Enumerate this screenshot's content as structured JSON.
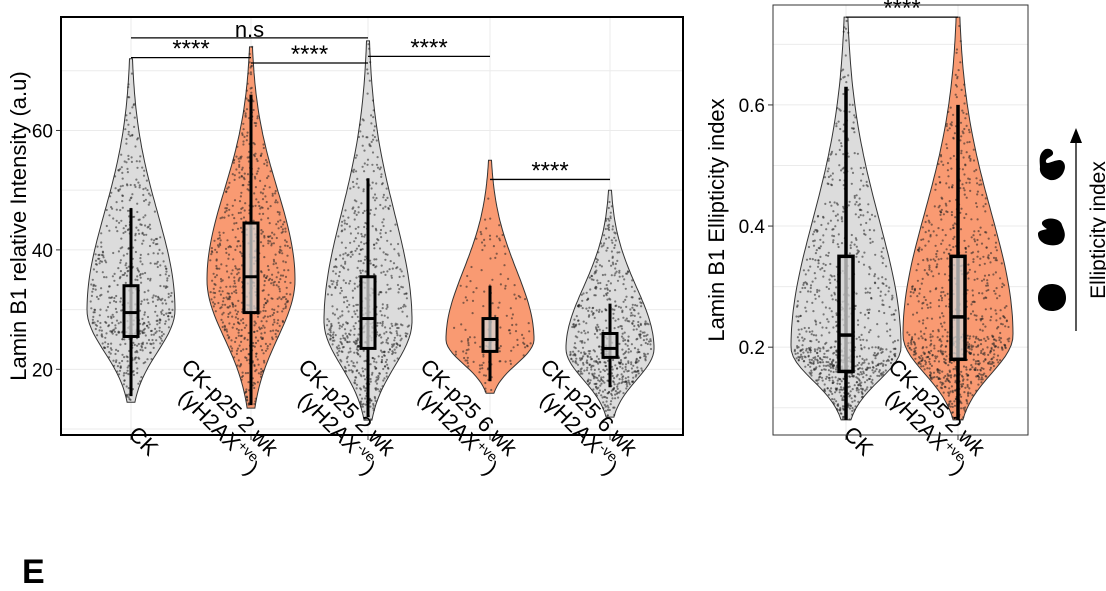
{
  "figure": {
    "panel_letter": "E",
    "colors": {
      "grey": "#dcdcdc",
      "orange": "#f99a72",
      "box_fill": "#d6d6d6",
      "point": "#222222",
      "line": "#000000"
    }
  },
  "chart_data": [
    {
      "type": "violin",
      "title": "",
      "xlabel": "",
      "ylabel": "Lamin B1 relative Intensity (a.u)",
      "ylim": [
        9,
        79
      ],
      "yticks": [
        20,
        40,
        60
      ],
      "grid": true,
      "categories": [
        {
          "label": [
            "CK"
          ],
          "fill": "grey",
          "min": 14.5,
          "max": 72,
          "q1": 25.5,
          "median": 29.5,
          "q3": 34,
          "wlow": 15.5,
          "whigh": 47,
          "center": 30,
          "n": 600
        },
        {
          "label": [
            "CK-p25 2 wk",
            "(γH2AX",
            "+ve",
            ")"
          ],
          "fill": "orange",
          "min": 13.5,
          "max": 74,
          "q1": 29.5,
          "median": 35.5,
          "q3": 44.5,
          "wlow": 14,
          "whigh": 66,
          "center": 35,
          "n": 700
        },
        {
          "label": [
            "CK-p25 2 wk",
            "(γH2AX",
            "-ve",
            ")"
          ],
          "fill": "grey",
          "min": 11.5,
          "max": 75,
          "q1": 23.5,
          "median": 28.5,
          "q3": 35.5,
          "wlow": 12,
          "whigh": 52,
          "center": 28,
          "n": 700
        },
        {
          "label": [
            "CK-p25 6 wk",
            "(γH2AX",
            "+ve",
            ")"
          ],
          "fill": "orange",
          "min": 16,
          "max": 55,
          "q1": 23,
          "median": 25,
          "q3": 28.5,
          "wlow": 18,
          "whigh": 34,
          "center": 25,
          "n": 150
        },
        {
          "label": [
            "CK-p25 6 wk",
            "(γH2AX",
            "-ve",
            ")"
          ],
          "fill": "grey",
          "min": 12,
          "max": 50,
          "q1": 22,
          "median": 23.5,
          "q3": 26,
          "wlow": 17,
          "whigh": 31,
          "center": 23.5,
          "n": 600
        }
      ],
      "significance": [
        {
          "from": 0,
          "to": 2,
          "y": 75.5,
          "label": "n.s"
        },
        {
          "from": 0,
          "to": 1,
          "y": 72.2,
          "label": "****"
        },
        {
          "from": 1,
          "to": 2,
          "y": 71.3,
          "label": "****"
        },
        {
          "from": 2,
          "to": 3,
          "y": 72.4,
          "label": "****"
        },
        {
          "from": 3,
          "to": 4,
          "y": 51.8,
          "label": "****"
        }
      ]
    },
    {
      "type": "violin",
      "title": "",
      "xlabel": "",
      "ylabel": "Lamin B1 Ellipticity index",
      "ylim": [
        0.055,
        0.765
      ],
      "yticks": [
        0.2,
        0.4,
        0.6
      ],
      "grid": true,
      "categories": [
        {
          "label": [
            "CK"
          ],
          "fill": "grey",
          "min": 0.08,
          "max": 0.745,
          "q1": 0.16,
          "median": 0.22,
          "q3": 0.35,
          "wlow": 0.08,
          "whigh": 0.63,
          "center": 0.2,
          "n": 900
        },
        {
          "label": [
            "CK-p25 2 wk",
            "(γH2AX",
            "+ve",
            ")"
          ],
          "fill": "orange",
          "min": 0.08,
          "max": 0.745,
          "q1": 0.18,
          "median": 0.25,
          "q3": 0.35,
          "wlow": 0.08,
          "whigh": 0.6,
          "center": 0.22,
          "n": 900
        }
      ],
      "significance": [
        {
          "from": 0,
          "to": 1,
          "y": 0.745,
          "label": "****"
        }
      ]
    }
  ],
  "schematic": {
    "label": "Ellipticity index",
    "shapes": [
      "round-nucleus-icon",
      "dented-nucleus-icon",
      "lobed-nucleus-icon"
    ]
  }
}
